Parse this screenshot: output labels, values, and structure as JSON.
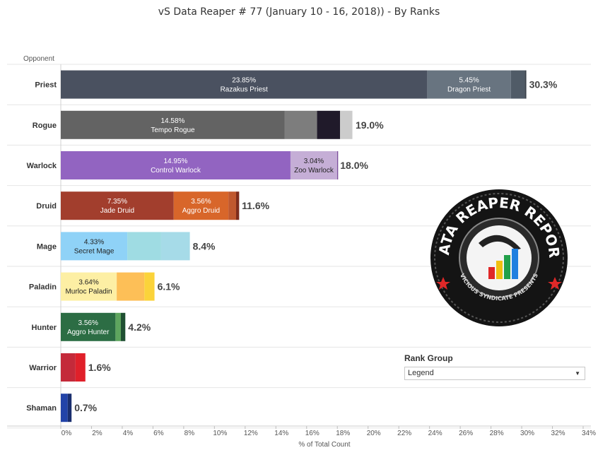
{
  "title": "vS Data Reaper #  77 (January 10 - 16, 2018)) - By Ranks",
  "rank_group": {
    "label": "Rank Group",
    "value": "Legend"
  },
  "logo": {
    "text_top": "DATA REAPER REPORT",
    "text_bottom": "VICIOUS SYNDICATE PRESENTS"
  },
  "chart_data": {
    "type": "bar",
    "orientation": "horizontal",
    "stacked": true,
    "row_header": "Opponent",
    "xlabel": "% of Total Count",
    "xlim": [
      0,
      34
    ],
    "x_ticks": [
      "0%",
      "2%",
      "4%",
      "6%",
      "8%",
      "10%",
      "12%",
      "14%",
      "16%",
      "18%",
      "20%",
      "22%",
      "24%",
      "26%",
      "28%",
      "30%",
      "32%",
      "34%"
    ],
    "rows": [
      {
        "label": "Priest",
        "total": 30.3,
        "total_label": "30.3%",
        "segments": [
          {
            "value": 23.85,
            "pct": "23.85%",
            "name": "Razakus Priest",
            "color": "#4a5160"
          },
          {
            "value": 5.45,
            "pct": "5.45%",
            "name": "Dragon Priest",
            "color": "#687480"
          },
          {
            "value": 0.9,
            "color": "#505b67"
          },
          {
            "value": 0.1,
            "color": "#3b434c"
          }
        ]
      },
      {
        "label": "Rogue",
        "total": 19.0,
        "total_label": "19.0%",
        "segments": [
          {
            "value": 14.58,
            "pct": "14.58%",
            "name": "Tempo Rogue",
            "color": "#636363"
          },
          {
            "value": 2.1,
            "color": "#7d7d7d"
          },
          {
            "value": 1.5,
            "color": "#201a2a"
          },
          {
            "value": 0.8,
            "color": "#cccccc"
          }
        ]
      },
      {
        "label": "Warlock",
        "total": 18.0,
        "total_label": "18.0%",
        "segments": [
          {
            "value": 14.95,
            "pct": "14.95%",
            "name": "Control Warlock",
            "color": "#9264c1"
          },
          {
            "value": 3.04,
            "pct": "3.04%",
            "name": "Zoo Warlock",
            "color": "#c5aed6",
            "dark": true
          },
          {
            "value": 0.06,
            "color": "#7a4c9b"
          }
        ]
      },
      {
        "label": "Druid",
        "total": 11.6,
        "total_label": "11.6%",
        "segments": [
          {
            "value": 7.35,
            "pct": "7.35%",
            "name": "Jade Druid",
            "color": "#a23e2d"
          },
          {
            "value": 3.56,
            "pct": "3.56%",
            "name": "Aggro Druid",
            "color": "#d8662a"
          },
          {
            "value": 0.5,
            "color": "#c0582e"
          },
          {
            "value": 0.2,
            "color": "#7e2d1c"
          }
        ]
      },
      {
        "label": "Mage",
        "total": 8.4,
        "total_label": "8.4%",
        "segments": [
          {
            "value": 4.33,
            "pct": "4.33%",
            "name": "Secret Mage",
            "color": "#8fd2f7",
            "dark": true
          },
          {
            "value": 2.2,
            "color": "#9fdce3"
          },
          {
            "value": 1.87,
            "color": "#a6dbe8"
          }
        ]
      },
      {
        "label": "Paladin",
        "total": 6.1,
        "total_label": "6.1%",
        "segments": [
          {
            "value": 3.64,
            "pct": "3.64%",
            "name": "Murloc Paladin",
            "color": "#fdefa4",
            "dark": true
          },
          {
            "value": 1.8,
            "color": "#fdbf57"
          },
          {
            "value": 0.66,
            "color": "#fbd33a"
          }
        ]
      },
      {
        "label": "Hunter",
        "total": 4.2,
        "total_label": "4.2%",
        "segments": [
          {
            "value": 3.56,
            "pct": "3.56%",
            "name": "Aggro Hunter",
            "color": "#2c6d44"
          },
          {
            "value": 0.35,
            "color": "#5ea55e"
          },
          {
            "value": 0.29,
            "color": "#1f4f32"
          }
        ]
      },
      {
        "label": "Warrior",
        "total": 1.6,
        "total_label": "1.6%",
        "segments": [
          {
            "value": 0.95,
            "color": "#c42a3a"
          },
          {
            "value": 0.65,
            "color": "#e0202a"
          }
        ]
      },
      {
        "label": "Shaman",
        "total": 0.7,
        "total_label": "0.7%",
        "segments": [
          {
            "value": 0.45,
            "color": "#2243a8"
          },
          {
            "value": 0.25,
            "color": "#1a2e6e"
          }
        ]
      }
    ]
  }
}
